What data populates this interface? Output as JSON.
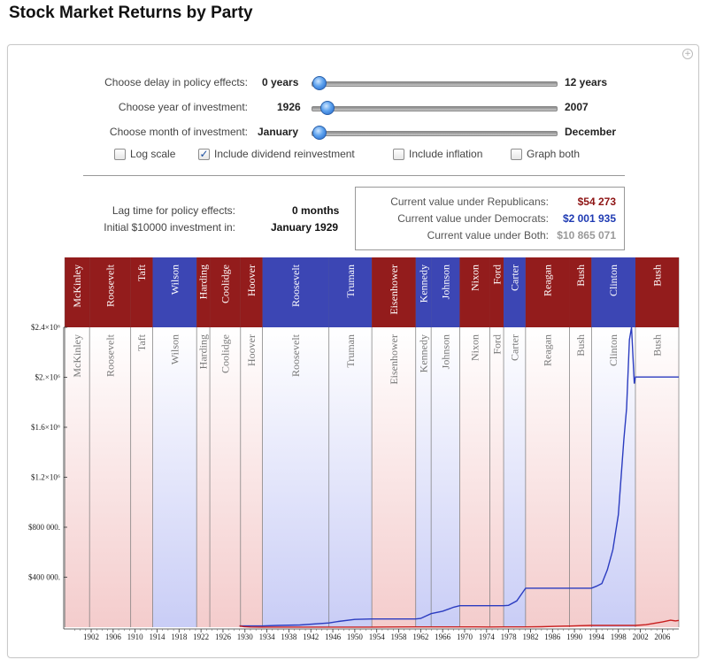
{
  "page": {
    "title": "Stock Market Returns by Party"
  },
  "controls": {
    "delay": {
      "label": "Choose delay in policy effects:",
      "min": "0 years",
      "max": "12 years",
      "value": 0,
      "range": [
        0,
        12
      ]
    },
    "year": {
      "label": "Choose year of investment:",
      "min": "1926",
      "max": "2007",
      "value": 1929,
      "range": [
        1926,
        2007
      ]
    },
    "month": {
      "label": "Choose month of investment:",
      "min": "January",
      "max": "December",
      "value": 1,
      "range": [
        1,
        12
      ]
    },
    "checkboxes": [
      {
        "label": "Log scale",
        "checked": false
      },
      {
        "label": "Include dividend reinvestment",
        "checked": true
      },
      {
        "label": "Include inflation",
        "checked": false
      },
      {
        "label": "Graph both",
        "checked": false
      }
    ]
  },
  "info": {
    "lag_label": "Lag time for policy effects:",
    "lag_value": "0 months",
    "initial_label": "Initial $10000 investment in:",
    "initial_value": "January 1929"
  },
  "values": {
    "rep_label": "Current value under Republicans:",
    "rep_value": "$54 273",
    "dem_label": "Current value under Democrats:",
    "dem_value": "$2 001 935",
    "both_label": "Current value under Both:",
    "both_value": "$10 865 071"
  },
  "colors": {
    "republican": "#931c1c",
    "democrat": "#3c46b4",
    "rep_bg": "#f5cfcf",
    "dem_bg": "#ccd0f7",
    "rep_line": "#c81e1e",
    "dem_line": "#2b3cc0"
  },
  "chart_data": {
    "type": "line",
    "xlim": [
      1897,
      2009
    ],
    "ylim": [
      0,
      2400000
    ],
    "x_ticks": [
      "1902",
      "1906",
      "1910",
      "1914",
      "1918",
      "1922",
      "1926",
      "1930",
      "1934",
      "1938",
      "1942",
      "1946",
      "1950",
      "1954",
      "1958",
      "1962",
      "1966",
      "1970",
      "1974",
      "1978",
      "1982",
      "1986",
      "1990",
      "1994",
      "1998",
      "2002",
      "2006"
    ],
    "y_ticks": [
      {
        "value": 400000,
        "label": "$400 000."
      },
      {
        "value": 800000,
        "label": "$800 000."
      },
      {
        "value": 1200000,
        "label": "$1.2×10⁶"
      },
      {
        "value": 1600000,
        "label": "$1.6×10⁶"
      },
      {
        "value": 2000000,
        "label": "$2.×10⁶"
      },
      {
        "value": 2400000,
        "label": "$2.4×10⁶"
      }
    ],
    "presidents": [
      {
        "name": "McKinley",
        "start": 1897.2,
        "end": 1901.7,
        "party": "R"
      },
      {
        "name": "Roosevelt",
        "start": 1901.7,
        "end": 1909.2,
        "party": "R"
      },
      {
        "name": "Taft",
        "start": 1909.2,
        "end": 1913.2,
        "party": "R"
      },
      {
        "name": "Wilson",
        "start": 1913.2,
        "end": 1921.2,
        "party": "D"
      },
      {
        "name": "Harding",
        "start": 1921.2,
        "end": 1923.6,
        "party": "R"
      },
      {
        "name": "Coolidge",
        "start": 1923.6,
        "end": 1929.2,
        "party": "R"
      },
      {
        "name": "Hoover",
        "start": 1929.2,
        "end": 1933.2,
        "party": "R"
      },
      {
        "name": "Roosevelt",
        "start": 1933.2,
        "end": 1945.3,
        "party": "D"
      },
      {
        "name": "Truman",
        "start": 1945.3,
        "end": 1953.1,
        "party": "D"
      },
      {
        "name": "Eisenhower",
        "start": 1953.1,
        "end": 1961.1,
        "party": "R"
      },
      {
        "name": "Kennedy",
        "start": 1961.1,
        "end": 1963.9,
        "party": "D"
      },
      {
        "name": "Johnson",
        "start": 1963.9,
        "end": 1969.1,
        "party": "D"
      },
      {
        "name": "Nixon",
        "start": 1969.1,
        "end": 1974.6,
        "party": "R"
      },
      {
        "name": "Ford",
        "start": 1974.6,
        "end": 1977.1,
        "party": "R"
      },
      {
        "name": "Carter",
        "start": 1977.1,
        "end": 1981.1,
        "party": "D"
      },
      {
        "name": "Reagan",
        "start": 1981.1,
        "end": 1989.1,
        "party": "R"
      },
      {
        "name": "Bush",
        "start": 1989.1,
        "end": 1993.1,
        "party": "R"
      },
      {
        "name": "Clinton",
        "start": 1993.1,
        "end": 2001.1,
        "party": "D"
      },
      {
        "name": "Bush",
        "start": 2001.1,
        "end": 2009.0,
        "party": "R"
      }
    ],
    "series": [
      {
        "name": "Democrats",
        "party": "D",
        "points": [
          [
            1929,
            10000
          ],
          [
            1933.2,
            10000
          ],
          [
            1936,
            14000
          ],
          [
            1940,
            18000
          ],
          [
            1945.3,
            34000
          ],
          [
            1947,
            46000
          ],
          [
            1950,
            62000
          ],
          [
            1953.1,
            66000
          ],
          [
            1961.1,
            66000
          ],
          [
            1962,
            70000
          ],
          [
            1963.9,
            108000
          ],
          [
            1966,
            128000
          ],
          [
            1968,
            160000
          ],
          [
            1969.1,
            172000
          ],
          [
            1977.1,
            172000
          ],
          [
            1978,
            175000
          ],
          [
            1979.5,
            210000
          ],
          [
            1981.1,
            312000
          ],
          [
            1989.1,
            312000
          ],
          [
            1993.1,
            312000
          ],
          [
            1994,
            328000
          ],
          [
            1995,
            350000
          ],
          [
            1996,
            460000
          ],
          [
            1997,
            620000
          ],
          [
            1998,
            900000
          ],
          [
            1999,
            1500000
          ],
          [
            1999.5,
            1750000
          ],
          [
            2000,
            2300000
          ],
          [
            2000.4,
            2400000
          ],
          [
            2000.9,
            1950000
          ],
          [
            2001.1,
            2001935
          ],
          [
            2009,
            2001935
          ]
        ]
      },
      {
        "name": "Republicans",
        "party": "R",
        "points": [
          [
            1929,
            10000
          ],
          [
            1929.8,
            4500
          ],
          [
            1931,
            1500
          ],
          [
            1932.6,
            800
          ],
          [
            1933.2,
            700
          ],
          [
            1945.3,
            700
          ],
          [
            1953.1,
            700
          ],
          [
            1956,
            1500
          ],
          [
            1961.1,
            2000
          ],
          [
            1969.1,
            2000
          ],
          [
            1972,
            2400
          ],
          [
            1974.6,
            1700
          ],
          [
            1977.1,
            1800
          ],
          [
            1981.1,
            1800
          ],
          [
            1984,
            3500
          ],
          [
            1987,
            8000
          ],
          [
            1989.1,
            9500
          ],
          [
            1991,
            12000
          ],
          [
            1993.1,
            14000
          ],
          [
            2001.1,
            14000
          ],
          [
            2003,
            20000
          ],
          [
            2006,
            42000
          ],
          [
            2007.5,
            56000
          ],
          [
            2008.4,
            50000
          ],
          [
            2009,
            54273
          ]
        ]
      }
    ]
  }
}
